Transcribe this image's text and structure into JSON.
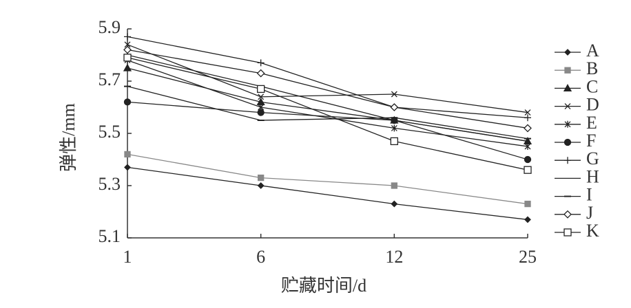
{
  "chart_data": {
    "type": "line",
    "x_label": "贮藏时间/d",
    "y_label": "弹性/mm",
    "categories": [
      "1",
      "6",
      "12",
      "25"
    ],
    "ylim": [
      5.1,
      5.9
    ],
    "yticks": [
      5.1,
      5.3,
      5.5,
      5.7,
      5.9
    ],
    "series": [
      {
        "name": "A",
        "color": "#222222",
        "marker": "diamond-filled",
        "values": [
          5.37,
          5.3,
          5.23,
          5.17
        ]
      },
      {
        "name": "B",
        "color": "#888888",
        "marker": "square-filled",
        "values": [
          5.42,
          5.33,
          5.3,
          5.23
        ]
      },
      {
        "name": "C",
        "color": "#222222",
        "marker": "triangle",
        "values": [
          5.75,
          5.62,
          5.55,
          5.47
        ]
      },
      {
        "name": "D",
        "color": "#222222",
        "marker": "x",
        "values": [
          5.84,
          5.64,
          5.65,
          5.58
        ]
      },
      {
        "name": "E",
        "color": "#222222",
        "marker": "asterisk",
        "values": [
          5.78,
          5.6,
          5.52,
          5.45
        ]
      },
      {
        "name": "F",
        "color": "#222222",
        "marker": "circle",
        "values": [
          5.62,
          5.58,
          5.55,
          5.4
        ]
      },
      {
        "name": "G",
        "color": "#222222",
        "marker": "plus",
        "values": [
          5.87,
          5.77,
          5.6,
          5.56
        ]
      },
      {
        "name": "H",
        "color": "#222222",
        "marker": "none",
        "values": [
          5.8,
          5.68,
          5.55,
          5.47
        ]
      },
      {
        "name": "I",
        "color": "#222222",
        "marker": "dash",
        "values": [
          5.68,
          5.55,
          5.56,
          5.48
        ]
      },
      {
        "name": "J",
        "color": "#222222",
        "marker": "diamond-open",
        "values": [
          5.82,
          5.73,
          5.6,
          5.52
        ]
      },
      {
        "name": "K",
        "color": "#222222",
        "marker": "square-open",
        "values": [
          5.79,
          5.67,
          5.47,
          5.36
        ]
      }
    ]
  }
}
